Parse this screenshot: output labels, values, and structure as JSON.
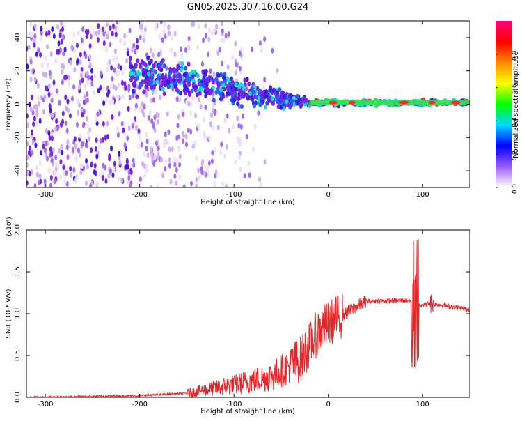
{
  "title": "GN05.2025.307.16.00.G24",
  "colors": {
    "spec_low": "#d9c2f5",
    "spec_mid": "#7a2ee6",
    "signal_line": "#e8262a",
    "colorbar_stops": [
      "#ffffff",
      "#9d5cff",
      "#0000ff",
      "#00d8ff",
      "#00ff00",
      "#ffff00",
      "#ff8800",
      "#ff0000",
      "#ff007a"
    ]
  },
  "chart_data": [
    {
      "type": "heatmap",
      "title": "GN05.2025.307.16.00.G24",
      "xlabel": "Height of straight line (km)",
      "ylabel": "Frequency (Hz)",
      "xlim": [
        -320,
        150
      ],
      "ylim": [
        -50,
        50
      ],
      "xticks": [
        -300,
        -200,
        -100,
        0,
        100
      ],
      "yticks": [
        -40,
        -20,
        0,
        20,
        40
      ],
      "colorbar": {
        "label": "Normalized spectral amplitude",
        "range": [
          0,
          1
        ],
        "ticks": [
          "0.0",
          "0.2",
          "0.4",
          "0.6",
          "0.8"
        ],
        "tick_values": [
          0,
          0.2,
          0.4,
          0.6,
          0.8
        ]
      },
      "ridge": [
        {
          "x": -200,
          "y": 18,
          "spread": 10
        },
        {
          "x": -150,
          "y": 14,
          "spread": 8
        },
        {
          "x": -100,
          "y": 8,
          "spread": 7
        },
        {
          "x": -50,
          "y": 3,
          "spread": 5
        },
        {
          "x": -20,
          "y": 1,
          "spread": 2
        },
        {
          "x": 150,
          "y": 1,
          "spread": 1.5
        }
      ]
    },
    {
      "type": "line",
      "xlabel": "Height of straight line (km)",
      "ylabel": "SNR (10 * v/v)",
      "y_multiplier": "(x10⁴)",
      "xlim": [
        -320,
        150
      ],
      "ylim": [
        0,
        2
      ],
      "xticks": [
        -300,
        -200,
        -100,
        0,
        100
      ],
      "yticks": [
        "0.0",
        "0.5",
        "1.0",
        "1.5",
        "2.0"
      ],
      "ytick_values": [
        0,
        0.5,
        1.0,
        1.5,
        2.0
      ],
      "series": [
        {
          "envelope": [
            {
              "x": -320,
              "y": 0.0
            },
            {
              "x": -200,
              "y": 0.02
            },
            {
              "x": -150,
              "y": 0.05
            },
            {
              "x": -100,
              "y": 0.15
            },
            {
              "x": -60,
              "y": 0.25
            },
            {
              "x": -30,
              "y": 0.45
            },
            {
              "x": -10,
              "y": 0.8
            },
            {
              "x": 10,
              "y": 0.95
            },
            {
              "x": 40,
              "y": 1.15
            },
            {
              "x": 85,
              "y": 1.16
            },
            {
              "x": 92,
              "y": 1.1
            },
            {
              "x": 110,
              "y": 1.12
            },
            {
              "x": 150,
              "y": 1.05
            }
          ]
        }
      ]
    }
  ]
}
